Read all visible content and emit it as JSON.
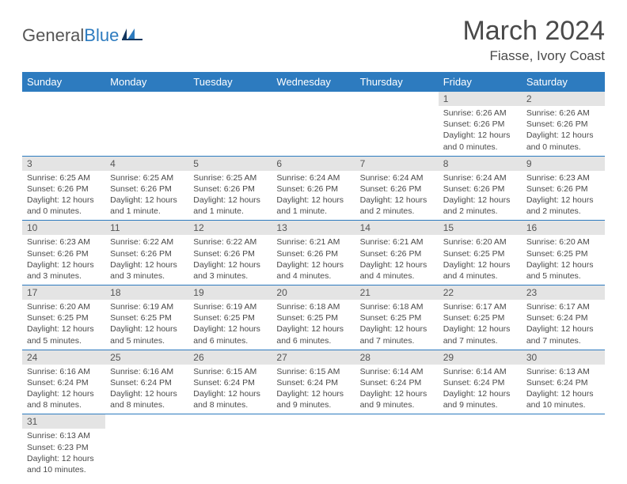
{
  "brand": {
    "part1": "General",
    "part2": "Blue"
  },
  "title": "March 2024",
  "location": "Fiasse, Ivory Coast",
  "colors": {
    "header_bg": "#2d7bbf",
    "header_text": "#ffffff",
    "daynum_bg": "#e4e4e4",
    "text": "#4a4a4a",
    "row_border": "#2d7bbf"
  },
  "fonts": {
    "title_size": 34,
    "location_size": 17,
    "header_size": 13,
    "cell_size": 10.5
  },
  "weekdays": [
    "Sunday",
    "Monday",
    "Tuesday",
    "Wednesday",
    "Thursday",
    "Friday",
    "Saturday"
  ],
  "layout": {
    "columns": 7,
    "leading_blanks": 5,
    "total_days": 31
  },
  "days": {
    "1": {
      "sunrise": "6:26 AM",
      "sunset": "6:26 PM",
      "daylight": "12 hours and 0 minutes."
    },
    "2": {
      "sunrise": "6:26 AM",
      "sunset": "6:26 PM",
      "daylight": "12 hours and 0 minutes."
    },
    "3": {
      "sunrise": "6:25 AM",
      "sunset": "6:26 PM",
      "daylight": "12 hours and 0 minutes."
    },
    "4": {
      "sunrise": "6:25 AM",
      "sunset": "6:26 PM",
      "daylight": "12 hours and 1 minute."
    },
    "5": {
      "sunrise": "6:25 AM",
      "sunset": "6:26 PM",
      "daylight": "12 hours and 1 minute."
    },
    "6": {
      "sunrise": "6:24 AM",
      "sunset": "6:26 PM",
      "daylight": "12 hours and 1 minute."
    },
    "7": {
      "sunrise": "6:24 AM",
      "sunset": "6:26 PM",
      "daylight": "12 hours and 2 minutes."
    },
    "8": {
      "sunrise": "6:24 AM",
      "sunset": "6:26 PM",
      "daylight": "12 hours and 2 minutes."
    },
    "9": {
      "sunrise": "6:23 AM",
      "sunset": "6:26 PM",
      "daylight": "12 hours and 2 minutes."
    },
    "10": {
      "sunrise": "6:23 AM",
      "sunset": "6:26 PM",
      "daylight": "12 hours and 3 minutes."
    },
    "11": {
      "sunrise": "6:22 AM",
      "sunset": "6:26 PM",
      "daylight": "12 hours and 3 minutes."
    },
    "12": {
      "sunrise": "6:22 AM",
      "sunset": "6:26 PM",
      "daylight": "12 hours and 3 minutes."
    },
    "13": {
      "sunrise": "6:21 AM",
      "sunset": "6:26 PM",
      "daylight": "12 hours and 4 minutes."
    },
    "14": {
      "sunrise": "6:21 AM",
      "sunset": "6:26 PM",
      "daylight": "12 hours and 4 minutes."
    },
    "15": {
      "sunrise": "6:20 AM",
      "sunset": "6:25 PM",
      "daylight": "12 hours and 4 minutes."
    },
    "16": {
      "sunrise": "6:20 AM",
      "sunset": "6:25 PM",
      "daylight": "12 hours and 5 minutes."
    },
    "17": {
      "sunrise": "6:20 AM",
      "sunset": "6:25 PM",
      "daylight": "12 hours and 5 minutes."
    },
    "18": {
      "sunrise": "6:19 AM",
      "sunset": "6:25 PM",
      "daylight": "12 hours and 5 minutes."
    },
    "19": {
      "sunrise": "6:19 AM",
      "sunset": "6:25 PM",
      "daylight": "12 hours and 6 minutes."
    },
    "20": {
      "sunrise": "6:18 AM",
      "sunset": "6:25 PM",
      "daylight": "12 hours and 6 minutes."
    },
    "21": {
      "sunrise": "6:18 AM",
      "sunset": "6:25 PM",
      "daylight": "12 hours and 7 minutes."
    },
    "22": {
      "sunrise": "6:17 AM",
      "sunset": "6:25 PM",
      "daylight": "12 hours and 7 minutes."
    },
    "23": {
      "sunrise": "6:17 AM",
      "sunset": "6:24 PM",
      "daylight": "12 hours and 7 minutes."
    },
    "24": {
      "sunrise": "6:16 AM",
      "sunset": "6:24 PM",
      "daylight": "12 hours and 8 minutes."
    },
    "25": {
      "sunrise": "6:16 AM",
      "sunset": "6:24 PM",
      "daylight": "12 hours and 8 minutes."
    },
    "26": {
      "sunrise": "6:15 AM",
      "sunset": "6:24 PM",
      "daylight": "12 hours and 8 minutes."
    },
    "27": {
      "sunrise": "6:15 AM",
      "sunset": "6:24 PM",
      "daylight": "12 hours and 9 minutes."
    },
    "28": {
      "sunrise": "6:14 AM",
      "sunset": "6:24 PM",
      "daylight": "12 hours and 9 minutes."
    },
    "29": {
      "sunrise": "6:14 AM",
      "sunset": "6:24 PM",
      "daylight": "12 hours and 9 minutes."
    },
    "30": {
      "sunrise": "6:13 AM",
      "sunset": "6:24 PM",
      "daylight": "12 hours and 10 minutes."
    },
    "31": {
      "sunrise": "6:13 AM",
      "sunset": "6:23 PM",
      "daylight": "12 hours and 10 minutes."
    }
  }
}
